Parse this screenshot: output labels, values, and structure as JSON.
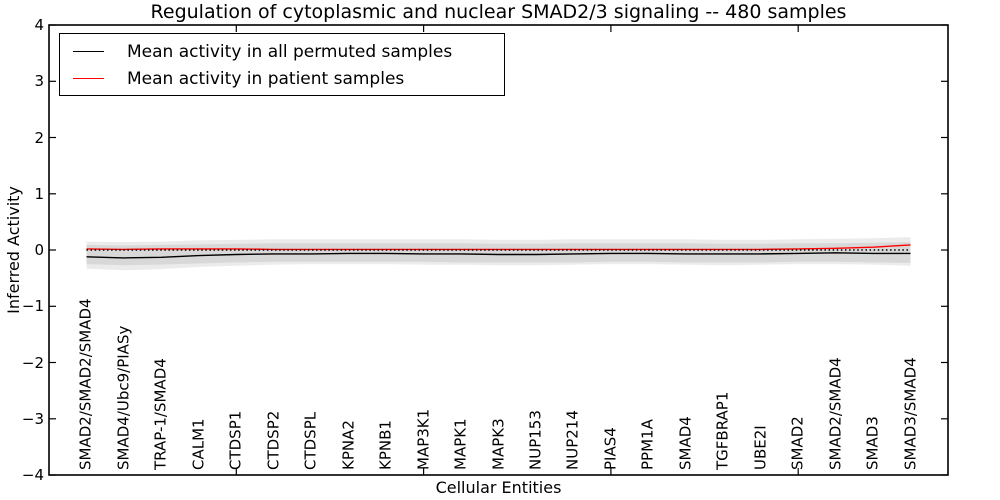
{
  "title": "Regulation of cytoplasmic and nuclear SMAD2/3 signaling -- 480 samples",
  "axes": {
    "xlabel": "Cellular Entities",
    "ylabel": "Inferred Activity"
  },
  "legend": {
    "position": "upper left",
    "items": [
      {
        "label": "Mean activity in all permuted samples",
        "color": "#000000"
      },
      {
        "label": "Mean activity in patient samples",
        "color": "#ff0000"
      }
    ]
  },
  "chart_data": {
    "type": "line",
    "title": "Regulation of cytoplasmic and nuclear SMAD2/3 signaling -- 480 samples",
    "xlabel": "Cellular Entities",
    "ylabel": "Inferred Activity",
    "xlim": [
      0,
      24
    ],
    "ylim": [
      -4,
      4
    ],
    "grid": false,
    "ytick_values": [
      4,
      3,
      2,
      1,
      0,
      -1,
      -2,
      -3,
      -4
    ],
    "ytick_labels": [
      "4",
      "3",
      "2",
      "1",
      "0",
      "−1",
      "−2",
      "−3",
      "−4"
    ],
    "xtick_positions": [
      5,
      10,
      15,
      20
    ],
    "categories": [
      "SMAD2/SMAD2/SMAD4",
      "SMAD4/Ubc9/PIASy",
      "TRAP-1/SMAD4",
      "CALM1",
      "CTDSP1",
      "CTDSP2",
      "CTDSPL",
      "KPNA2",
      "KPNB1",
      "MAP3K1",
      "MAPK1",
      "MAPK3",
      "NUP153",
      "NUP214",
      "PIAS4",
      "PPM1A",
      "SMAD4",
      "TGFBRAP1",
      "UBE2I",
      "SMAD2",
      "SMAD2/SMAD4",
      "SMAD3",
      "SMAD3/SMAD4"
    ],
    "series": [
      {
        "name": "Mean activity in all permuted samples",
        "color": "#000000",
        "style": "solid",
        "width": 1.4,
        "values": [
          -0.12,
          -0.14,
          -0.13,
          -0.1,
          -0.08,
          -0.07,
          -0.07,
          -0.06,
          -0.06,
          -0.07,
          -0.07,
          -0.08,
          -0.08,
          -0.07,
          -0.06,
          -0.06,
          -0.07,
          -0.07,
          -0.07,
          -0.06,
          -0.05,
          -0.06,
          -0.06
        ]
      },
      {
        "name": "Mean activity in patient samples",
        "color": "#ff0000",
        "style": "solid",
        "width": 1.4,
        "values": [
          0.02,
          0.01,
          0.02,
          0.02,
          0.02,
          0.01,
          0.01,
          0.01,
          0.01,
          0.01,
          0.01,
          0.01,
          0.01,
          0.01,
          0.01,
          0.01,
          0.01,
          0.01,
          0.01,
          0.02,
          0.03,
          0.05,
          0.09
        ]
      }
    ],
    "reference_line": {
      "y": 0,
      "style": "dotted",
      "color": "#000000",
      "width": 1.4
    },
    "bands": [
      {
        "name": "permuted-std-band",
        "color": "rgba(0,0,0,0.08)",
        "upper": [
          0.09,
          0.08,
          0.09,
          0.1,
          0.11,
          0.12,
          0.12,
          0.12,
          0.12,
          0.12,
          0.12,
          0.11,
          0.11,
          0.12,
          0.12,
          0.12,
          0.12,
          0.11,
          0.11,
          0.12,
          0.12,
          0.13,
          0.14
        ],
        "lower": [
          -0.33,
          -0.36,
          -0.34,
          -0.3,
          -0.28,
          -0.26,
          -0.25,
          -0.25,
          -0.25,
          -0.26,
          -0.26,
          -0.27,
          -0.27,
          -0.26,
          -0.25,
          -0.25,
          -0.26,
          -0.27,
          -0.26,
          -0.25,
          -0.25,
          -0.26,
          -0.28
        ]
      },
      {
        "name": "patient-std-band",
        "color": "rgba(0,0,0,0.08)",
        "upper": [
          0.15,
          0.14,
          0.15,
          0.17,
          0.18,
          0.19,
          0.19,
          0.19,
          0.19,
          0.19,
          0.19,
          0.18,
          0.18,
          0.19,
          0.19,
          0.19,
          0.19,
          0.18,
          0.18,
          0.19,
          0.2,
          0.21,
          0.23
        ],
        "lower": [
          -0.25,
          -0.27,
          -0.26,
          -0.24,
          -0.22,
          -0.21,
          -0.21,
          -0.21,
          -0.21,
          -0.21,
          -0.22,
          -0.22,
          -0.22,
          -0.22,
          -0.21,
          -0.21,
          -0.22,
          -0.22,
          -0.22,
          -0.21,
          -0.21,
          -0.22,
          -0.23
        ]
      }
    ]
  }
}
